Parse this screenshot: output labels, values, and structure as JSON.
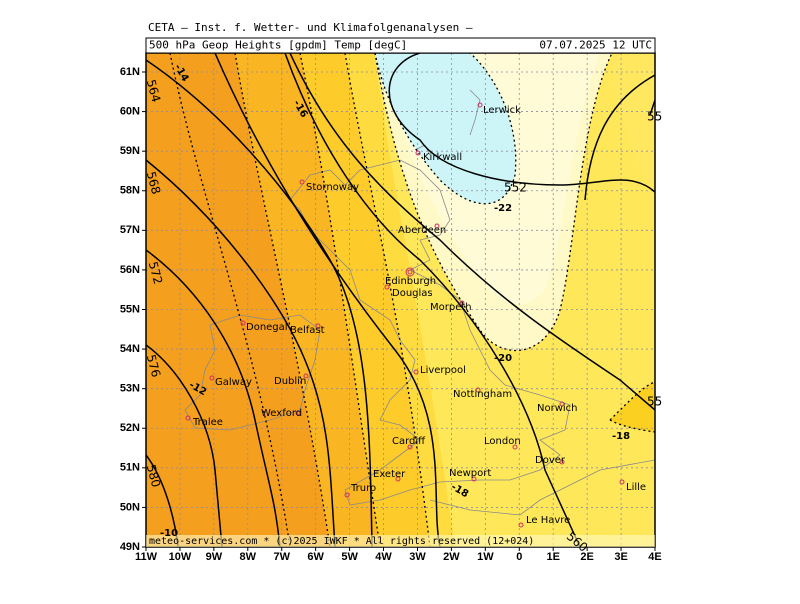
{
  "header": {
    "title": "CETA – Inst. f. Wetter- und Klimafolgenanalysen –",
    "parameter": "500 hPa Geop Heights [gpdm] Temp [degC]",
    "valid_time": "07.07.2025 12 UTC"
  },
  "footer": "meteo-services.com * (c)2025 IWKF * All rights reserved (12+024)",
  "lat_labels": [
    "61N",
    "60N",
    "59N",
    "58N",
    "57N",
    "56N",
    "55N",
    "54N",
    "53N",
    "52N",
    "51N",
    "50N",
    "49N"
  ],
  "lon_labels": [
    "11W",
    "10W",
    "9W",
    "8W",
    "7W",
    "6W",
    "5W",
    "4W",
    "3W",
    "2W",
    "1W",
    "0",
    "1E",
    "2E",
    "3E",
    "4E"
  ],
  "cities": [
    "Lerwick",
    "Kirkwall",
    "Stornoway",
    "Aberdeen",
    "Edinburgh",
    "Douglas",
    "Morpeth",
    "Belfast",
    "Donegal",
    "Galway",
    "Dublin",
    "Liverpool",
    "Nottingham",
    "Norwich",
    "Wexford",
    "Tralee",
    "Cardiff",
    "London",
    "Dover",
    "Exeter",
    "Newport",
    "Truro",
    "Lille",
    "Le Havre"
  ],
  "height_contour_labels": [
    "564",
    "568",
    "572",
    "576",
    "580",
    "552",
    "55",
    "55",
    "560"
  ],
  "temperature_labels": [
    "-14",
    "-16",
    "-22",
    "-20",
    "-12",
    "-18",
    "-18",
    "-10"
  ]
}
